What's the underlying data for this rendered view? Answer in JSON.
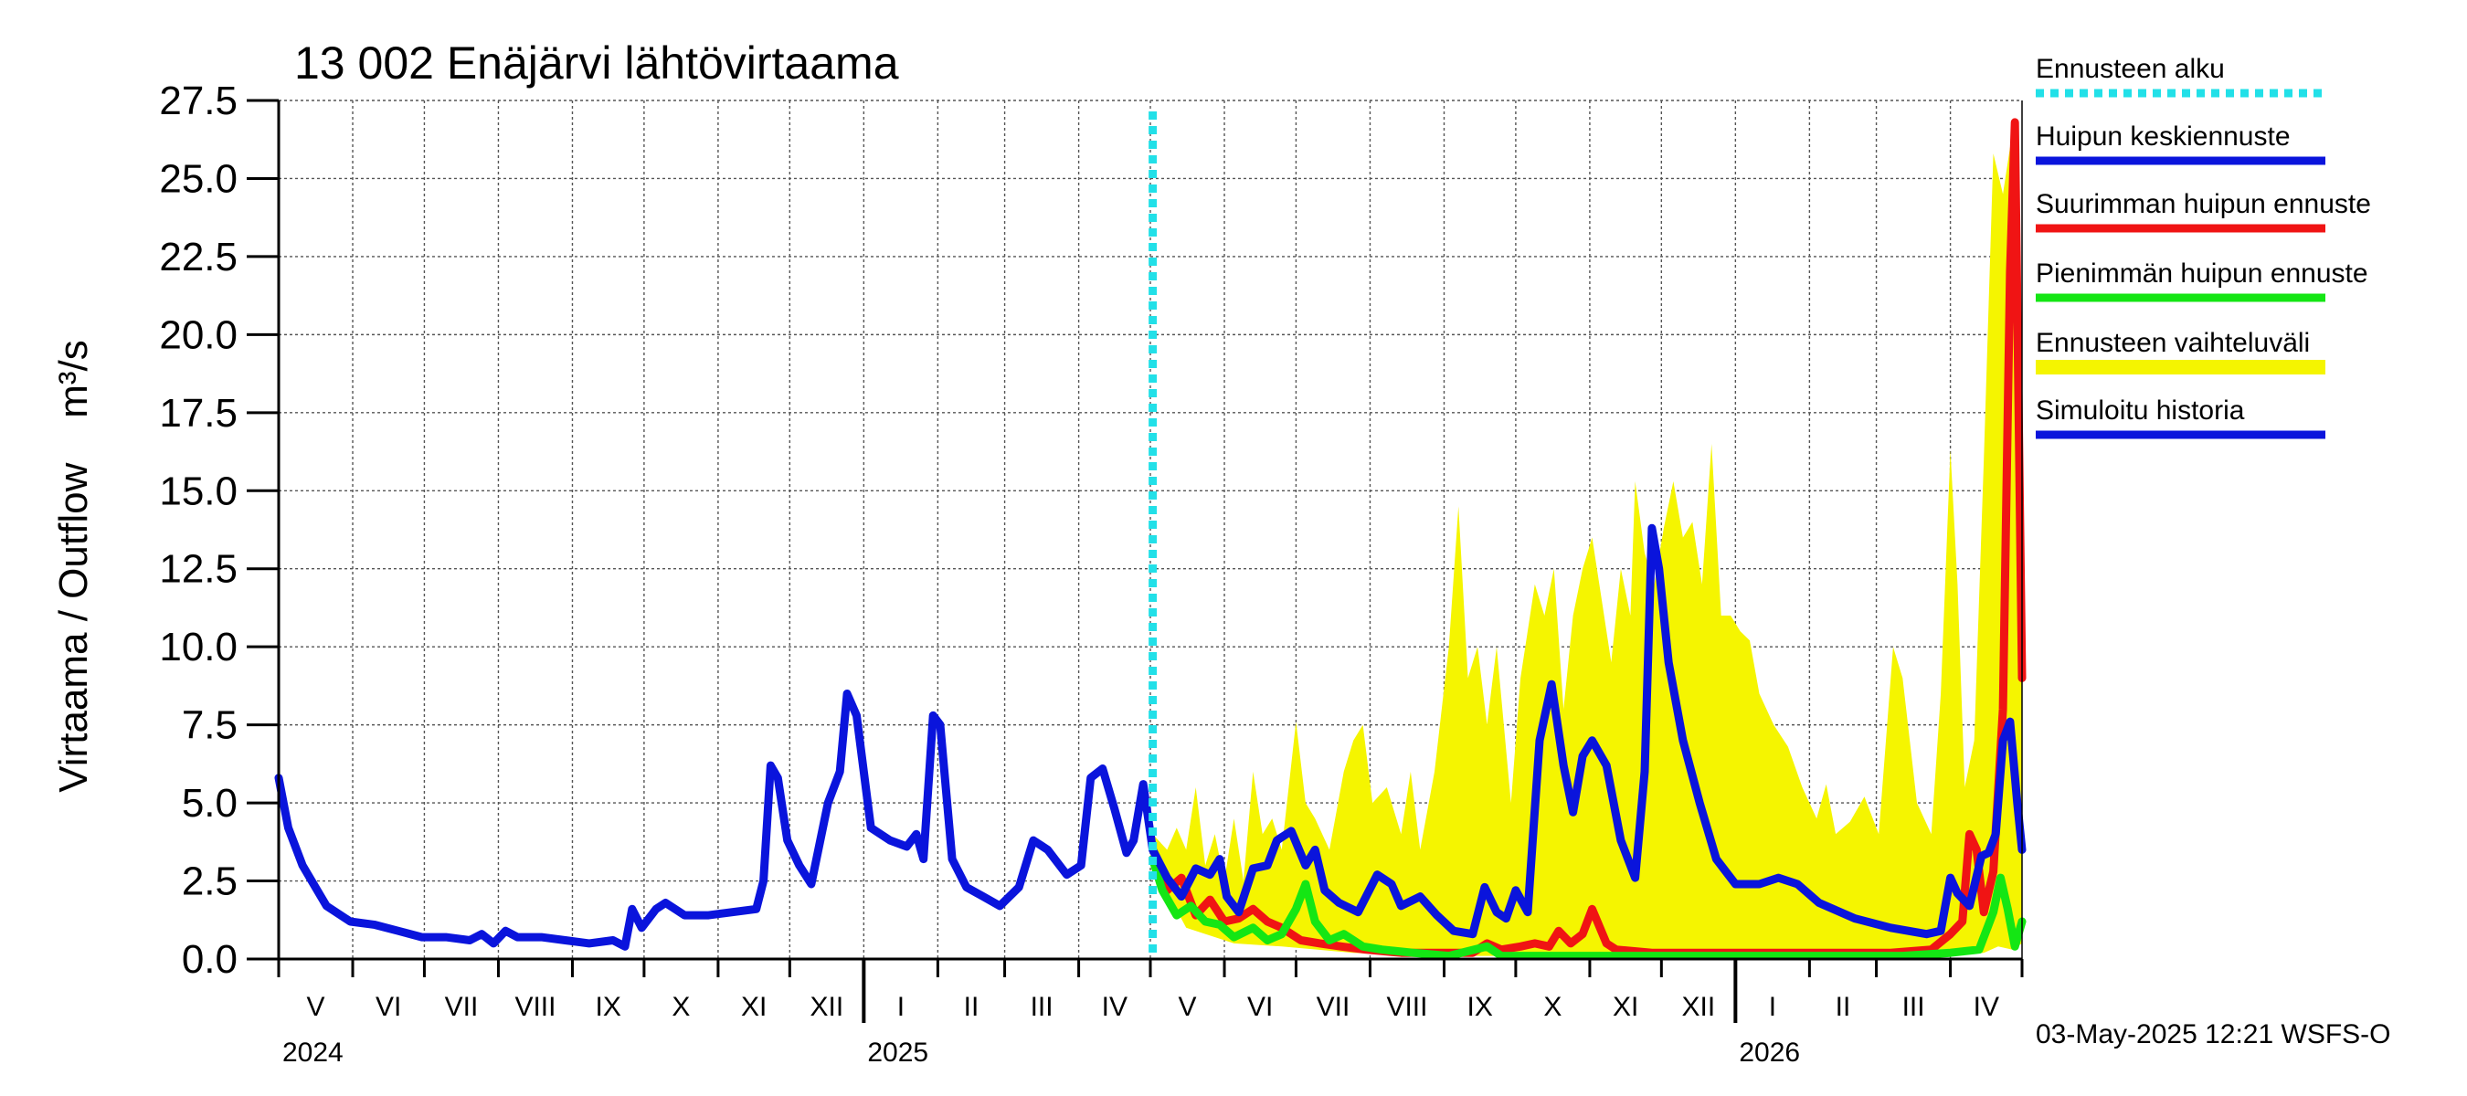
{
  "chart_data": {
    "type": "line",
    "title": "13 002 Enäjärvi lähtövirtaama",
    "ylabel": "Virtaama / Outflow    m³/s",
    "ylim": [
      0,
      27.5
    ],
    "yticks": [
      "0.0",
      "2.5",
      "5.0",
      "7.5",
      "10.0",
      "12.5",
      "15.0",
      "17.5",
      "20.0",
      "22.5",
      "25.0",
      "27.5"
    ],
    "x_range_days": [
      0,
      730
    ],
    "month_labels": [
      "V",
      "VI",
      "VII",
      "VIII",
      "IX",
      "X",
      "XI",
      "XII",
      "I",
      "II",
      "III",
      "IV",
      "V",
      "VI",
      "VII",
      "VIII",
      "IX",
      "X",
      "XI",
      "XII",
      "I",
      "II",
      "III",
      "IV"
    ],
    "year_labels": [
      {
        "label": "2024",
        "day": 0
      },
      {
        "label": "2025",
        "day": 245
      },
      {
        "label": "2026",
        "day": 610
      }
    ],
    "forecast_start_day": 366,
    "legend": [
      {
        "label": "Ennusteen alku",
        "color": "#22e0e8",
        "style": "dashed"
      },
      {
        "label": "Huipun keskiennuste",
        "color": "#0a14dc",
        "style": "solid"
      },
      {
        "label": "Suurimman huipun ennuste",
        "color": "#f01414",
        "style": "solid"
      },
      {
        "label": "Pienimmän huipun ennuste",
        "color": "#14e614",
        "style": "solid"
      },
      {
        "label": "Ennusteen vaihteluväli",
        "color": "#f5f500",
        "style": "band"
      },
      {
        "label": "Simuloitu historia",
        "color": "#0a14dc",
        "style": "solid"
      }
    ],
    "series": [
      {
        "name": "Simuloitu historia",
        "color": "#0a14dc",
        "points": [
          [
            0,
            5.8
          ],
          [
            4,
            4.2
          ],
          [
            10,
            3.0
          ],
          [
            20,
            1.7
          ],
          [
            30,
            1.2
          ],
          [
            40,
            1.1
          ],
          [
            50,
            0.9
          ],
          [
            60,
            0.7
          ],
          [
            70,
            0.7
          ],
          [
            80,
            0.6
          ],
          [
            85,
            0.8
          ],
          [
            90,
            0.5
          ],
          [
            95,
            0.9
          ],
          [
            100,
            0.7
          ],
          [
            110,
            0.7
          ],
          [
            120,
            0.6
          ],
          [
            130,
            0.5
          ],
          [
            140,
            0.6
          ],
          [
            145,
            0.4
          ],
          [
            148,
            1.6
          ],
          [
            152,
            1.0
          ],
          [
            158,
            1.6
          ],
          [
            162,
            1.8
          ],
          [
            170,
            1.4
          ],
          [
            180,
            1.4
          ],
          [
            190,
            1.5
          ],
          [
            200,
            1.6
          ],
          [
            203,
            2.5
          ],
          [
            206,
            6.2
          ],
          [
            209,
            5.8
          ],
          [
            213,
            3.8
          ],
          [
            218,
            3.0
          ],
          [
            223,
            2.4
          ],
          [
            230,
            5.0
          ],
          [
            235,
            6.0
          ],
          [
            238,
            8.5
          ],
          [
            242,
            7.8
          ],
          [
            248,
            4.2
          ],
          [
            256,
            3.8
          ],
          [
            263,
            3.6
          ],
          [
            267,
            4.0
          ],
          [
            270,
            3.2
          ],
          [
            274,
            7.8
          ],
          [
            277,
            7.5
          ],
          [
            282,
            3.2
          ],
          [
            288,
            2.3
          ],
          [
            295,
            2.0
          ],
          [
            302,
            1.7
          ],
          [
            310,
            2.3
          ],
          [
            316,
            3.8
          ],
          [
            322,
            3.5
          ],
          [
            330,
            2.7
          ],
          [
            336,
            3.0
          ],
          [
            340,
            5.8
          ],
          [
            345,
            6.1
          ],
          [
            350,
            4.8
          ],
          [
            355,
            3.4
          ],
          [
            358,
            3.8
          ],
          [
            362,
            5.6
          ],
          [
            366,
            3.5
          ]
        ]
      },
      {
        "name": "Huipun keskiennuste",
        "color": "#0a14dc",
        "points": [
          [
            366,
            3.5
          ],
          [
            372,
            2.6
          ],
          [
            378,
            2.0
          ],
          [
            384,
            2.9
          ],
          [
            390,
            2.7
          ],
          [
            394,
            3.2
          ],
          [
            397,
            2.0
          ],
          [
            402,
            1.5
          ],
          [
            408,
            2.9
          ],
          [
            414,
            3.0
          ],
          [
            418,
            3.8
          ],
          [
            424,
            4.1
          ],
          [
            430,
            3.0
          ],
          [
            434,
            3.5
          ],
          [
            438,
            2.2
          ],
          [
            444,
            1.8
          ],
          [
            452,
            1.5
          ],
          [
            460,
            2.7
          ],
          [
            466,
            2.4
          ],
          [
            470,
            1.7
          ],
          [
            478,
            2.0
          ],
          [
            485,
            1.4
          ],
          [
            492,
            0.9
          ],
          [
            500,
            0.8
          ],
          [
            505,
            2.3
          ],
          [
            510,
            1.5
          ],
          [
            514,
            1.3
          ],
          [
            518,
            2.2
          ],
          [
            523,
            1.5
          ],
          [
            528,
            7.0
          ],
          [
            533,
            8.8
          ],
          [
            538,
            6.2
          ],
          [
            542,
            4.7
          ],
          [
            546,
            6.5
          ],
          [
            550,
            7.0
          ],
          [
            556,
            6.2
          ],
          [
            562,
            3.8
          ],
          [
            568,
            2.6
          ],
          [
            572,
            6.0
          ],
          [
            575,
            13.8
          ],
          [
            578,
            12.5
          ],
          [
            582,
            9.5
          ],
          [
            588,
            7.0
          ],
          [
            595,
            5.0
          ],
          [
            602,
            3.2
          ],
          [
            610,
            2.4
          ],
          [
            620,
            2.4
          ],
          [
            628,
            2.6
          ],
          [
            636,
            2.4
          ],
          [
            645,
            1.8
          ],
          [
            660,
            1.3
          ],
          [
            675,
            1.0
          ],
          [
            690,
            0.8
          ],
          [
            696,
            0.9
          ],
          [
            700,
            2.6
          ],
          [
            703,
            2.1
          ],
          [
            708,
            1.7
          ],
          [
            713,
            3.3
          ],
          [
            716,
            3.4
          ],
          [
            719,
            4.0
          ],
          [
            722,
            7.0
          ],
          [
            725,
            7.6
          ],
          [
            728,
            5.0
          ],
          [
            730,
            3.5
          ]
        ]
      },
      {
        "name": "Suurimman huipun ennuste",
        "color": "#f01414",
        "points": [
          [
            366,
            3.2
          ],
          [
            372,
            2.2
          ],
          [
            378,
            2.6
          ],
          [
            384,
            1.4
          ],
          [
            390,
            1.9
          ],
          [
            396,
            1.2
          ],
          [
            402,
            1.3
          ],
          [
            408,
            1.6
          ],
          [
            414,
            1.2
          ],
          [
            420,
            1.0
          ],
          [
            428,
            0.6
          ],
          [
            436,
            0.5
          ],
          [
            445,
            0.4
          ],
          [
            455,
            0.3
          ],
          [
            470,
            0.2
          ],
          [
            490,
            0.2
          ],
          [
            500,
            0.2
          ],
          [
            506,
            0.5
          ],
          [
            512,
            0.3
          ],
          [
            520,
            0.4
          ],
          [
            526,
            0.5
          ],
          [
            532,
            0.4
          ],
          [
            536,
            0.9
          ],
          [
            541,
            0.5
          ],
          [
            546,
            0.8
          ],
          [
            550,
            1.6
          ],
          [
            556,
            0.5
          ],
          [
            560,
            0.3
          ],
          [
            575,
            0.2
          ],
          [
            600,
            0.2
          ],
          [
            625,
            0.2
          ],
          [
            650,
            0.2
          ],
          [
            675,
            0.2
          ],
          [
            692,
            0.3
          ],
          [
            700,
            0.8
          ],
          [
            705,
            1.2
          ],
          [
            708,
            4.0
          ],
          [
            711,
            3.5
          ],
          [
            714,
            1.5
          ],
          [
            718,
            2.8
          ],
          [
            722,
            8.0
          ],
          [
            725,
            22.0
          ],
          [
            727,
            26.8
          ],
          [
            729,
            15.0
          ],
          [
            730,
            9.0
          ]
        ]
      },
      {
        "name": "Pienimmän huipun ennuste",
        "color": "#14e614",
        "points": [
          [
            366,
            3.2
          ],
          [
            370,
            2.2
          ],
          [
            376,
            1.4
          ],
          [
            382,
            1.7
          ],
          [
            388,
            1.2
          ],
          [
            394,
            1.1
          ],
          [
            400,
            0.7
          ],
          [
            408,
            1.0
          ],
          [
            414,
            0.6
          ],
          [
            420,
            0.8
          ],
          [
            426,
            1.6
          ],
          [
            430,
            2.4
          ],
          [
            434,
            1.2
          ],
          [
            440,
            0.6
          ],
          [
            446,
            0.8
          ],
          [
            454,
            0.4
          ],
          [
            462,
            0.3
          ],
          [
            475,
            0.2
          ],
          [
            490,
            0.1
          ],
          [
            506,
            0.4
          ],
          [
            512,
            0.1
          ],
          [
            530,
            0.1
          ],
          [
            560,
            0.1
          ],
          [
            590,
            0.1
          ],
          [
            620,
            0.1
          ],
          [
            650,
            0.1
          ],
          [
            680,
            0.1
          ],
          [
            700,
            0.2
          ],
          [
            712,
            0.3
          ],
          [
            718,
            1.5
          ],
          [
            721,
            2.6
          ],
          [
            724,
            1.6
          ],
          [
            727,
            0.4
          ],
          [
            730,
            1.2
          ]
        ]
      }
    ],
    "band": {
      "name": "Ennusteen vaihteluväli",
      "color": "#f5f500",
      "upper": [
        [
          366,
          4.0
        ],
        [
          372,
          3.5
        ],
        [
          376,
          4.2
        ],
        [
          380,
          3.5
        ],
        [
          384,
          5.5
        ],
        [
          388,
          3.0
        ],
        [
          392,
          4.0
        ],
        [
          396,
          2.5
        ],
        [
          400,
          4.5
        ],
        [
          404,
          2.5
        ],
        [
          408,
          6.0
        ],
        [
          412,
          4.0
        ],
        [
          416,
          4.5
        ],
        [
          420,
          3.5
        ],
        [
          426,
          7.6
        ],
        [
          430,
          5.0
        ],
        [
          434,
          4.5
        ],
        [
          440,
          3.5
        ],
        [
          446,
          6.0
        ],
        [
          450,
          7.0
        ],
        [
          454,
          7.5
        ],
        [
          458,
          5.0
        ],
        [
          464,
          5.5
        ],
        [
          470,
          4.0
        ],
        [
          474,
          6.0
        ],
        [
          478,
          3.5
        ],
        [
          484,
          6.0
        ],
        [
          490,
          10.0
        ],
        [
          494,
          14.5
        ],
        [
          498,
          9.0
        ],
        [
          502,
          10.0
        ],
        [
          506,
          7.5
        ],
        [
          510,
          10.0
        ],
        [
          516,
          5.0
        ],
        [
          520,
          9.0
        ],
        [
          526,
          12.0
        ],
        [
          530,
          11.0
        ],
        [
          534,
          12.5
        ],
        [
          538,
          8.0
        ],
        [
          542,
          11.0
        ],
        [
          546,
          12.5
        ],
        [
          550,
          13.5
        ],
        [
          554,
          11.5
        ],
        [
          558,
          9.5
        ],
        [
          562,
          12.5
        ],
        [
          566,
          11.0
        ],
        [
          568,
          15.3
        ],
        [
          572,
          13.0
        ],
        [
          576,
          12.0
        ],
        [
          580,
          13.8
        ],
        [
          584,
          15.3
        ],
        [
          588,
          13.5
        ],
        [
          592,
          14.0
        ],
        [
          596,
          12.0
        ],
        [
          600,
          16.5
        ],
        [
          604,
          11.0
        ],
        [
          608,
          11.0
        ],
        [
          612,
          10.5
        ],
        [
          616,
          10.2
        ],
        [
          620,
          8.5
        ],
        [
          626,
          7.5
        ],
        [
          632,
          6.8
        ],
        [
          638,
          5.5
        ],
        [
          644,
          4.5
        ],
        [
          648,
          5.6
        ],
        [
          652,
          4.0
        ],
        [
          658,
          4.4
        ],
        [
          664,
          5.2
        ],
        [
          670,
          4.0
        ],
        [
          676,
          10.0
        ],
        [
          680,
          9.0
        ],
        [
          686,
          5.0
        ],
        [
          692,
          4.0
        ],
        [
          696,
          8.5
        ],
        [
          700,
          16.3
        ],
        [
          703,
          12.0
        ],
        [
          706,
          5.5
        ],
        [
          710,
          7.0
        ],
        [
          714,
          16.0
        ],
        [
          718,
          25.8
        ],
        [
          722,
          24.5
        ],
        [
          726,
          26.5
        ],
        [
          730,
          10.0
        ]
      ],
      "lower": [
        [
          366,
          3.0
        ],
        [
          380,
          1.0
        ],
        [
          400,
          0.5
        ],
        [
          420,
          0.4
        ],
        [
          450,
          0.2
        ],
        [
          480,
          0.1
        ],
        [
          520,
          0.1
        ],
        [
          560,
          0.1
        ],
        [
          600,
          0.1
        ],
        [
          640,
          0.1
        ],
        [
          680,
          0.1
        ],
        [
          700,
          0.1
        ],
        [
          714,
          0.2
        ],
        [
          720,
          0.4
        ],
        [
          726,
          0.3
        ],
        [
          730,
          0.5
        ]
      ]
    },
    "footer": "03-May-2025 12:21 WSFS-O"
  }
}
